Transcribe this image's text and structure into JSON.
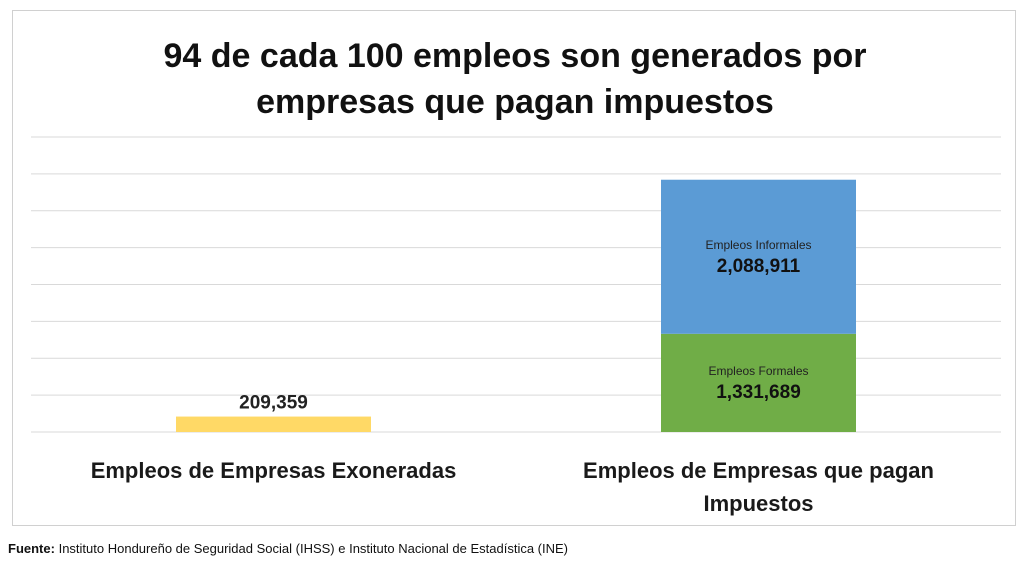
{
  "chart_data": {
    "type": "bar",
    "stacked": true,
    "title_lines": [
      "94 de cada 100 empleos son generados por",
      "empresas que pagan impuestos"
    ],
    "categories": [
      "Empleos de Empresas Exoneradas",
      "Empleos de Empresas que pagan Impuestos"
    ],
    "category_label_lines": [
      [
        "Empleos de Empresas Exoneradas"
      ],
      [
        "Empleos de Empresas que pagan",
        "Impuestos"
      ]
    ],
    "series": [
      {
        "name": "",
        "color": "#FFD966",
        "values": [
          209359,
          0
        ],
        "value_labels": [
          "209,359",
          ""
        ]
      },
      {
        "name": "Empleos Formales",
        "color": "#70AD47",
        "values": [
          0,
          1331689
        ],
        "value_labels": [
          "",
          "1,331,689"
        ]
      },
      {
        "name": "Empleos Informales",
        "color": "#5B9BD5",
        "values": [
          0,
          2088911
        ],
        "value_labels": [
          "",
          "2,088,911"
        ]
      }
    ],
    "ylim": [
      0,
      4000000
    ],
    "grid": true,
    "xlabel": "",
    "ylabel": ""
  },
  "source": {
    "label": "Fuente:",
    "text": "Instituto Hondureño de Seguridad Social (IHSS) e Instituto Nacional de Estadística (INE)"
  }
}
